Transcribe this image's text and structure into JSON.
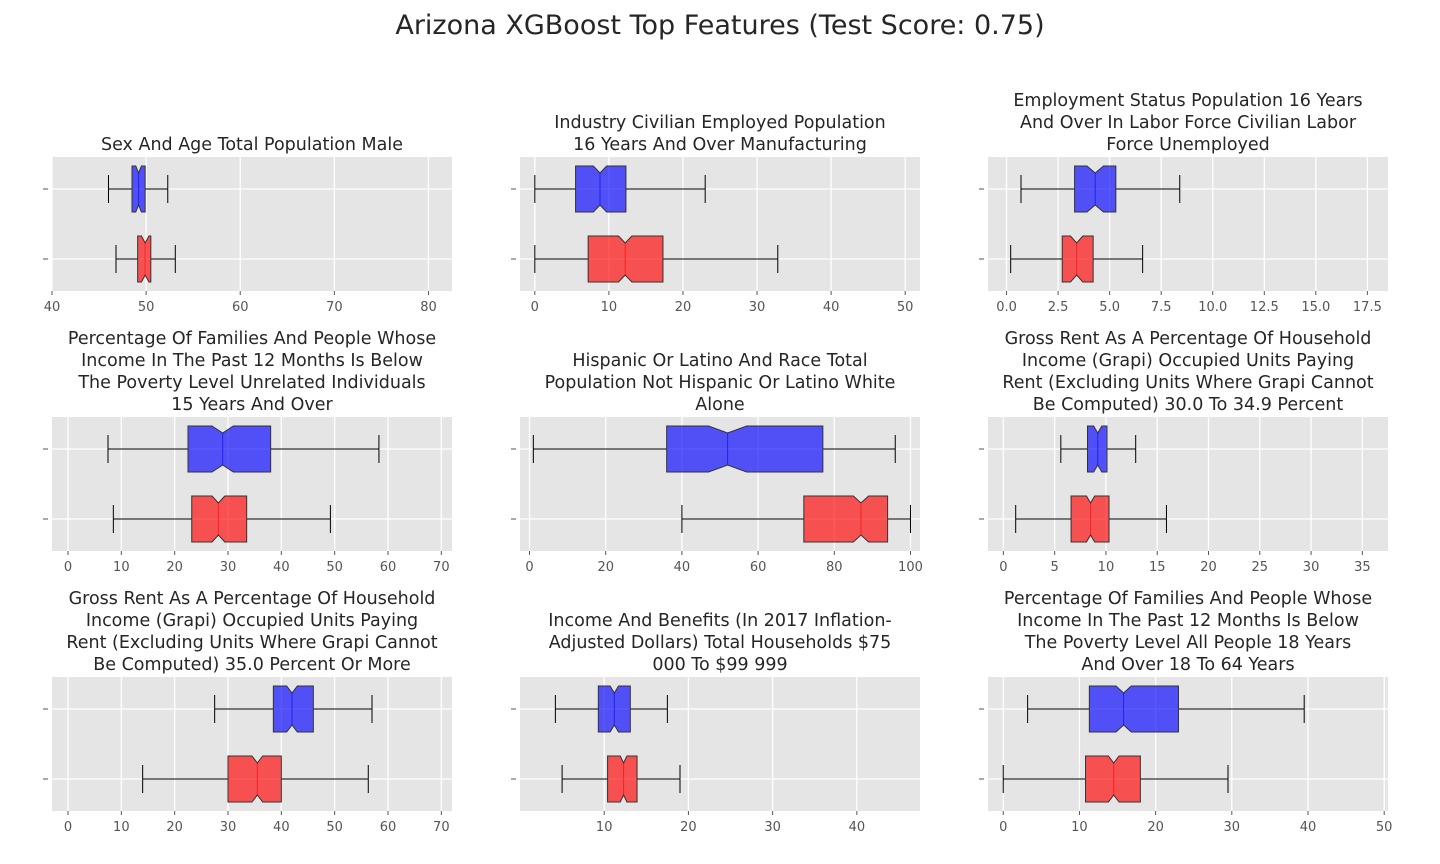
{
  "figure": {
    "title": "Arizona XGBoost Top Features (Test Score: 0.75)"
  },
  "colors": {
    "blue": "#0000ff",
    "red": "#ff0000",
    "plot_bg": "#e5e5e5",
    "grid": "#ffffff"
  },
  "chart_data": [
    {
      "type": "box",
      "title_lines": [
        "Sex And Age Total Population Male"
      ],
      "xlim": [
        40,
        82.5
      ],
      "xticks": [
        40,
        50,
        60,
        70,
        80
      ],
      "series": [
        {
          "color": "blue",
          "whisker_low": 46,
          "q1": 48.5,
          "median": 49.2,
          "q3": 49.9,
          "whisker_high": 52.3,
          "notch_low": 48.9,
          "notch_high": 49.5
        },
        {
          "color": "red",
          "whisker_low": 46.8,
          "q1": 49.1,
          "median": 49.9,
          "q3": 50.5,
          "whisker_high": 53.1,
          "notch_low": 49.5,
          "notch_high": 50.3
        }
      ]
    },
    {
      "type": "box",
      "title_lines": [
        "Industry Civilian Employed Population",
        "16 Years And Over Manufacturing"
      ],
      "xlim": [
        -2,
        52
      ],
      "xticks": [
        0,
        10,
        20,
        30,
        40,
        50
      ],
      "series": [
        {
          "color": "blue",
          "whisker_low": 0,
          "q1": 5.5,
          "median": 8.8,
          "q3": 12.3,
          "whisker_high": 23,
          "notch_low": 7.9,
          "notch_high": 9.7
        },
        {
          "color": "red",
          "whisker_low": 0,
          "q1": 7.2,
          "median": 12.2,
          "q3": 17.3,
          "whisker_high": 32.8,
          "notch_low": 11.3,
          "notch_high": 13.1
        }
      ]
    },
    {
      "type": "box",
      "title_lines": [
        "Employment Status Population 16 Years",
        "And Over In Labor Force Civilian Labor",
        "Force Unemployed"
      ],
      "xlim": [
        -0.9,
        18.5
      ],
      "xticks": [
        0,
        2.5,
        5,
        7.5,
        10,
        12.5,
        15,
        17.5
      ],
      "xtick_labels": [
        "0.0",
        "2.5",
        "5.0",
        "7.5",
        "10.0",
        "12.5",
        "15.0",
        "17.5"
      ],
      "series": [
        {
          "color": "blue",
          "whisker_low": 0.7,
          "q1": 3.3,
          "median": 4.3,
          "q3": 5.3,
          "whisker_high": 8.4,
          "notch_low": 3.9,
          "notch_high": 4.7
        },
        {
          "color": "red",
          "whisker_low": 0.2,
          "q1": 2.7,
          "median": 3.4,
          "q3": 4.2,
          "whisker_high": 6.6,
          "notch_low": 3.1,
          "notch_high": 3.7
        }
      ]
    },
    {
      "type": "box",
      "title_lines": [
        "Percentage Of Families And People Whose",
        "Income In The Past 12 Months Is Below",
        "The Poverty Level Unrelated Individuals",
        "15 Years And Over"
      ],
      "xlim": [
        -3,
        72
      ],
      "xticks": [
        0,
        10,
        20,
        30,
        40,
        50,
        60,
        70
      ],
      "series": [
        {
          "color": "blue",
          "whisker_low": 7.5,
          "q1": 22.5,
          "median": 29,
          "q3": 38,
          "whisker_high": 58.3,
          "notch_low": 27,
          "notch_high": 31
        },
        {
          "color": "red",
          "whisker_low": 8.5,
          "q1": 23.2,
          "median": 28.2,
          "q3": 33.5,
          "whisker_high": 49.2,
          "notch_low": 27,
          "notch_high": 29.4
        }
      ]
    },
    {
      "type": "box",
      "title_lines": [
        "Hispanic Or Latino And Race Total",
        "Population Not Hispanic Or Latino White",
        "Alone"
      ],
      "xlim": [
        -2.5,
        102.5
      ],
      "xticks": [
        0,
        20,
        40,
        60,
        80,
        100
      ],
      "series": [
        {
          "color": "blue",
          "whisker_low": 1,
          "q1": 36,
          "median": 52,
          "q3": 77,
          "whisker_high": 96,
          "notch_low": 47,
          "notch_high": 57
        },
        {
          "color": "red",
          "whisker_low": 40,
          "q1": 72,
          "median": 87,
          "q3": 94,
          "whisker_high": 100,
          "notch_low": 85,
          "notch_high": 89
        }
      ]
    },
    {
      "type": "box",
      "title_lines": [
        "Gross Rent As A Percentage Of Household",
        "Income (Grapi) Occupied Units Paying",
        "Rent (Excluding Units Where Grapi Cannot",
        "Be Computed) 30.0 To 34.9 Percent"
      ],
      "xlim": [
        -1.5,
        37.5
      ],
      "xticks": [
        0,
        5,
        10,
        15,
        20,
        25,
        30,
        35
      ],
      "series": [
        {
          "color": "blue",
          "whisker_low": 5.6,
          "q1": 8.2,
          "median": 9.2,
          "q3": 10.1,
          "whisker_high": 12.9,
          "notch_low": 8.8,
          "notch_high": 9.6
        },
        {
          "color": "red",
          "whisker_low": 1.2,
          "q1": 6.6,
          "median": 8.5,
          "q3": 10.3,
          "whisker_high": 15.9,
          "notch_low": 8.1,
          "notch_high": 8.9
        }
      ]
    },
    {
      "type": "box",
      "title_lines": [
        "Gross Rent As A Percentage Of Household",
        "Income (Grapi) Occupied Units Paying",
        "Rent (Excluding Units Where Grapi Cannot",
        "Be Computed) 35.0 Percent Or More"
      ],
      "xlim": [
        -3,
        72
      ],
      "xticks": [
        0,
        10,
        20,
        30,
        40,
        50,
        60,
        70
      ],
      "series": [
        {
          "color": "blue",
          "whisker_low": 27.5,
          "q1": 38.5,
          "median": 42,
          "q3": 46,
          "whisker_high": 57,
          "notch_low": 41,
          "notch_high": 43
        },
        {
          "color": "red",
          "whisker_low": 14,
          "q1": 30,
          "median": 35.5,
          "q3": 40,
          "whisker_high": 56.3,
          "notch_low": 34.5,
          "notch_high": 36.5
        }
      ]
    },
    {
      "type": "box",
      "title_lines": [
        "Income And Benefits (In 2017 Inflation-",
        "Adjusted Dollars) Total Households $75",
        "000 To $99 999"
      ],
      "xlim": [
        0,
        47.5
      ],
      "xticks": [
        10,
        20,
        30,
        40
      ],
      "series": [
        {
          "color": "blue",
          "whisker_low": 4.2,
          "q1": 9.3,
          "median": 11.2,
          "q3": 13.1,
          "whisker_high": 17.5,
          "notch_low": 10.7,
          "notch_high": 11.7
        },
        {
          "color": "red",
          "whisker_low": 5,
          "q1": 10.4,
          "median": 12.3,
          "q3": 13.9,
          "whisker_high": 19,
          "notch_low": 11.9,
          "notch_high": 12.7
        }
      ]
    },
    {
      "type": "box",
      "title_lines": [
        "Percentage Of Families And People Whose",
        "Income In The Past 12 Months Is Below",
        "The Poverty Level All People 18 Years",
        "And Over 18 To 64 Years"
      ],
      "xlim": [
        -2,
        50.5
      ],
      "xticks": [
        0,
        10,
        20,
        30,
        40,
        50
      ],
      "series": [
        {
          "color": "blue",
          "whisker_low": 3.2,
          "q1": 11.3,
          "median": 15.8,
          "q3": 23,
          "whisker_high": 39.5,
          "notch_low": 14.8,
          "notch_high": 16.8
        },
        {
          "color": "red",
          "whisker_low": 0,
          "q1": 10.8,
          "median": 14.5,
          "q3": 18,
          "whisker_high": 29.5,
          "notch_low": 13.8,
          "notch_high": 15.2
        }
      ]
    }
  ]
}
